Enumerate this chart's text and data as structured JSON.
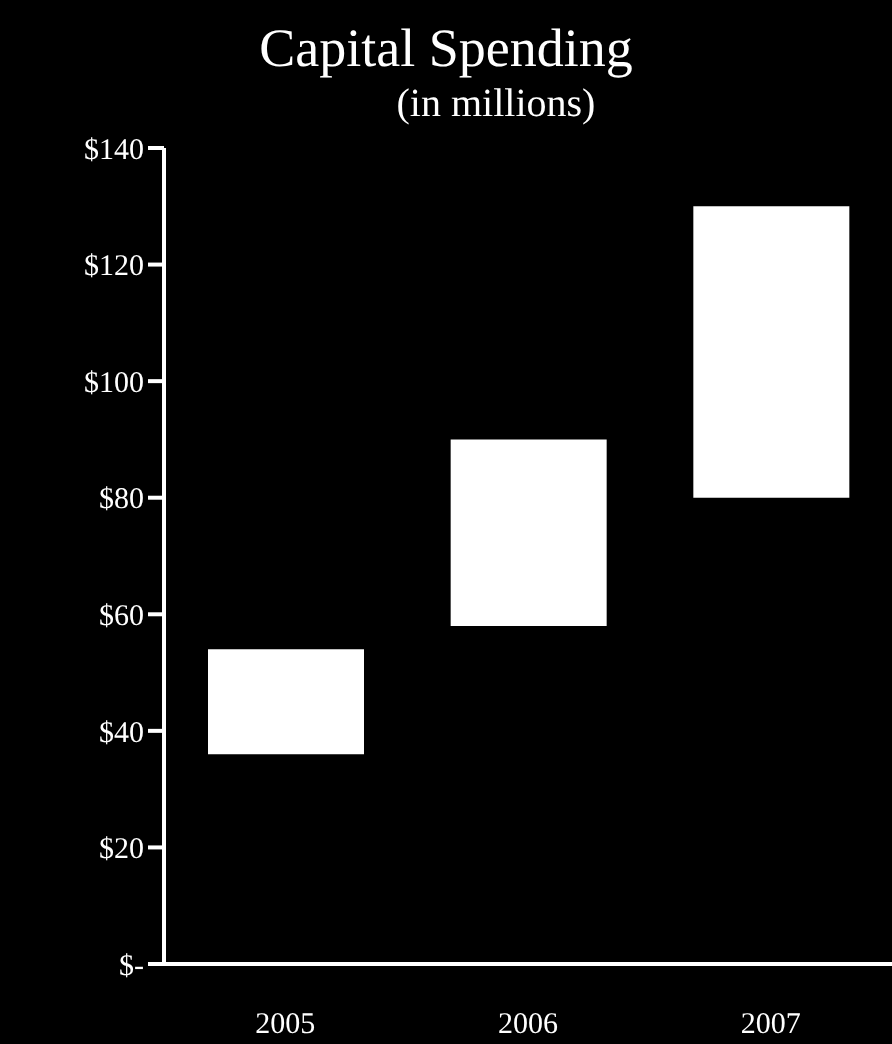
{
  "chart_data": {
    "type": "bar",
    "title": "Capital Spending",
    "subtitle": "(in millions)",
    "categories": [
      "2005",
      "2006",
      "2007"
    ],
    "values": [
      18,
      32,
      50
    ],
    "base": [
      36,
      58,
      80
    ],
    "color": "#ffffff",
    "ylim": [
      0,
      140
    ],
    "yticks": [
      {
        "value": 0,
        "label": "$-"
      },
      {
        "value": 20,
        "label": "$20"
      },
      {
        "value": 40,
        "label": "$40"
      },
      {
        "value": 60,
        "label": "$60"
      },
      {
        "value": 80,
        "label": "$80"
      },
      {
        "value": 100,
        "label": "$100"
      },
      {
        "value": 120,
        "label": "$120"
      },
      {
        "value": 140,
        "label": "$140"
      }
    ],
    "grid": false,
    "legend": false
  }
}
